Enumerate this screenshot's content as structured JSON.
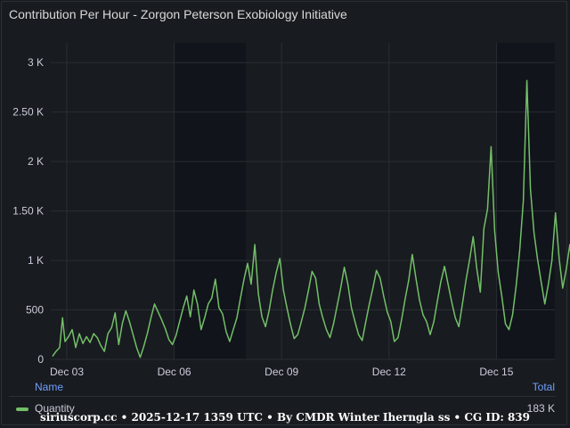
{
  "panel": {
    "title": "Contribution Per Hour - Zorgon Peterson Exobiology Initiative"
  },
  "legend": {
    "header_name": "Name",
    "header_total": "Total",
    "series_name": "Quantity",
    "series_total": "183 K",
    "series_color": "#73bf69"
  },
  "watermark": "siriuscorp.cc • 2025-12-17 1359 UTC • By CMDR Winter Iherngla ss • CG ID: 839",
  "chart_data": {
    "type": "line",
    "title": "Contribution Per Hour - Zorgon Peterson Exobiology Initiative",
    "xlabel": "",
    "ylabel": "",
    "ylim": [
      0,
      3200
    ],
    "xlim": [
      0,
      14.45
    ],
    "x_unit": "days since Dec 03 00:00 UTC",
    "y_ticks": [
      {
        "value": 0,
        "label": "0"
      },
      {
        "value": 500,
        "label": "500"
      },
      {
        "value": 1000,
        "label": "1 K"
      },
      {
        "value": 1500,
        "label": "1.50 K"
      },
      {
        "value": 2000,
        "label": "2 K"
      },
      {
        "value": 2500,
        "label": "2.50 K"
      },
      {
        "value": 3000,
        "label": "3 K"
      }
    ],
    "x_ticks": [
      {
        "value": 0,
        "label": "Dec 03"
      },
      {
        "value": 3,
        "label": "Dec 06"
      },
      {
        "value": 6,
        "label": "Dec 09"
      },
      {
        "value": 9,
        "label": "Dec 12"
      },
      {
        "value": 12,
        "label": "Dec 15"
      }
    ],
    "shaded_regions": [
      [
        3,
        5
      ],
      [
        12,
        14.4
      ]
    ],
    "grid": true,
    "legend_position": "bottom",
    "series": [
      {
        "name": "Quantity",
        "color": "#73bf69",
        "points": [
          [
            -0.4,
            30
          ],
          [
            -0.3,
            80
          ],
          [
            -0.2,
            120
          ],
          [
            -0.12,
            420
          ],
          [
            -0.05,
            180
          ],
          [
            0.05,
            230
          ],
          [
            0.15,
            300
          ],
          [
            0.25,
            120
          ],
          [
            0.35,
            260
          ],
          [
            0.45,
            160
          ],
          [
            0.55,
            230
          ],
          [
            0.65,
            170
          ],
          [
            0.75,
            260
          ],
          [
            0.85,
            220
          ],
          [
            0.95,
            140
          ],
          [
            1.05,
            80
          ],
          [
            1.15,
            260
          ],
          [
            1.25,
            320
          ],
          [
            1.35,
            470
          ],
          [
            1.45,
            150
          ],
          [
            1.55,
            360
          ],
          [
            1.65,
            490
          ],
          [
            1.75,
            380
          ],
          [
            1.85,
            250
          ],
          [
            1.95,
            120
          ],
          [
            2.05,
            20
          ],
          [
            2.15,
            130
          ],
          [
            2.25,
            260
          ],
          [
            2.35,
            420
          ],
          [
            2.45,
            560
          ],
          [
            2.55,
            480
          ],
          [
            2.65,
            400
          ],
          [
            2.75,
            310
          ],
          [
            2.85,
            200
          ],
          [
            2.95,
            150
          ],
          [
            3.05,
            240
          ],
          [
            3.15,
            380
          ],
          [
            3.25,
            520
          ],
          [
            3.35,
            640
          ],
          [
            3.45,
            430
          ],
          [
            3.55,
            700
          ],
          [
            3.65,
            560
          ],
          [
            3.75,
            300
          ],
          [
            3.85,
            420
          ],
          [
            3.95,
            560
          ],
          [
            4.05,
            620
          ],
          [
            4.15,
            810
          ],
          [
            4.25,
            520
          ],
          [
            4.35,
            460
          ],
          [
            4.45,
            280
          ],
          [
            4.55,
            180
          ],
          [
            4.65,
            300
          ],
          [
            4.75,
            420
          ],
          [
            4.85,
            620
          ],
          [
            4.95,
            810
          ],
          [
            5.05,
            970
          ],
          [
            5.15,
            760
          ],
          [
            5.25,
            1160
          ],
          [
            5.35,
            660
          ],
          [
            5.45,
            430
          ],
          [
            5.55,
            330
          ],
          [
            5.65,
            490
          ],
          [
            5.75,
            700
          ],
          [
            5.85,
            880
          ],
          [
            5.95,
            1020
          ],
          [
            6.05,
            700
          ],
          [
            6.15,
            520
          ],
          [
            6.25,
            350
          ],
          [
            6.35,
            210
          ],
          [
            6.45,
            250
          ],
          [
            6.55,
            380
          ],
          [
            6.65,
            520
          ],
          [
            6.75,
            700
          ],
          [
            6.85,
            890
          ],
          [
            6.95,
            820
          ],
          [
            7.05,
            560
          ],
          [
            7.15,
            420
          ],
          [
            7.25,
            300
          ],
          [
            7.35,
            220
          ],
          [
            7.45,
            360
          ],
          [
            7.55,
            540
          ],
          [
            7.65,
            720
          ],
          [
            7.75,
            930
          ],
          [
            7.85,
            760
          ],
          [
            7.95,
            520
          ],
          [
            8.05,
            380
          ],
          [
            8.15,
            250
          ],
          [
            8.25,
            190
          ],
          [
            8.35,
            380
          ],
          [
            8.45,
            560
          ],
          [
            8.55,
            720
          ],
          [
            8.65,
            900
          ],
          [
            8.75,
            820
          ],
          [
            8.85,
            640
          ],
          [
            8.95,
            480
          ],
          [
            9.05,
            380
          ],
          [
            9.15,
            180
          ],
          [
            9.25,
            220
          ],
          [
            9.35,
            400
          ],
          [
            9.45,
            610
          ],
          [
            9.55,
            800
          ],
          [
            9.65,
            1060
          ],
          [
            9.75,
            820
          ],
          [
            9.85,
            600
          ],
          [
            9.95,
            450
          ],
          [
            10.05,
            380
          ],
          [
            10.15,
            250
          ],
          [
            10.25,
            380
          ],
          [
            10.35,
            590
          ],
          [
            10.45,
            790
          ],
          [
            10.55,
            940
          ],
          [
            10.65,
            760
          ],
          [
            10.75,
            580
          ],
          [
            10.85,
            420
          ],
          [
            10.95,
            330
          ],
          [
            11.05,
            560
          ],
          [
            11.15,
            800
          ],
          [
            11.25,
            1010
          ],
          [
            11.35,
            1240
          ],
          [
            11.45,
            920
          ],
          [
            11.55,
            680
          ],
          [
            11.65,
            1320
          ],
          [
            11.75,
            1520
          ],
          [
            11.85,
            2150
          ],
          [
            11.95,
            1300
          ],
          [
            12.05,
            880
          ],
          [
            12.15,
            640
          ],
          [
            12.25,
            360
          ],
          [
            12.35,
            300
          ],
          [
            12.45,
            450
          ],
          [
            12.55,
            740
          ],
          [
            12.65,
            1100
          ],
          [
            12.75,
            1600
          ],
          [
            12.85,
            2820
          ],
          [
            12.95,
            1720
          ],
          [
            13.05,
            1280
          ],
          [
            13.15,
            1010
          ],
          [
            13.25,
            780
          ],
          [
            13.35,
            560
          ],
          [
            13.45,
            760
          ],
          [
            13.55,
            1000
          ],
          [
            13.65,
            1480
          ],
          [
            13.75,
            1020
          ],
          [
            13.85,
            720
          ],
          [
            13.95,
            910
          ],
          [
            14.05,
            1160
          ],
          [
            14.15,
            830
          ],
          [
            14.25,
            1050
          ],
          [
            14.35,
            1180
          ]
        ]
      }
    ]
  }
}
